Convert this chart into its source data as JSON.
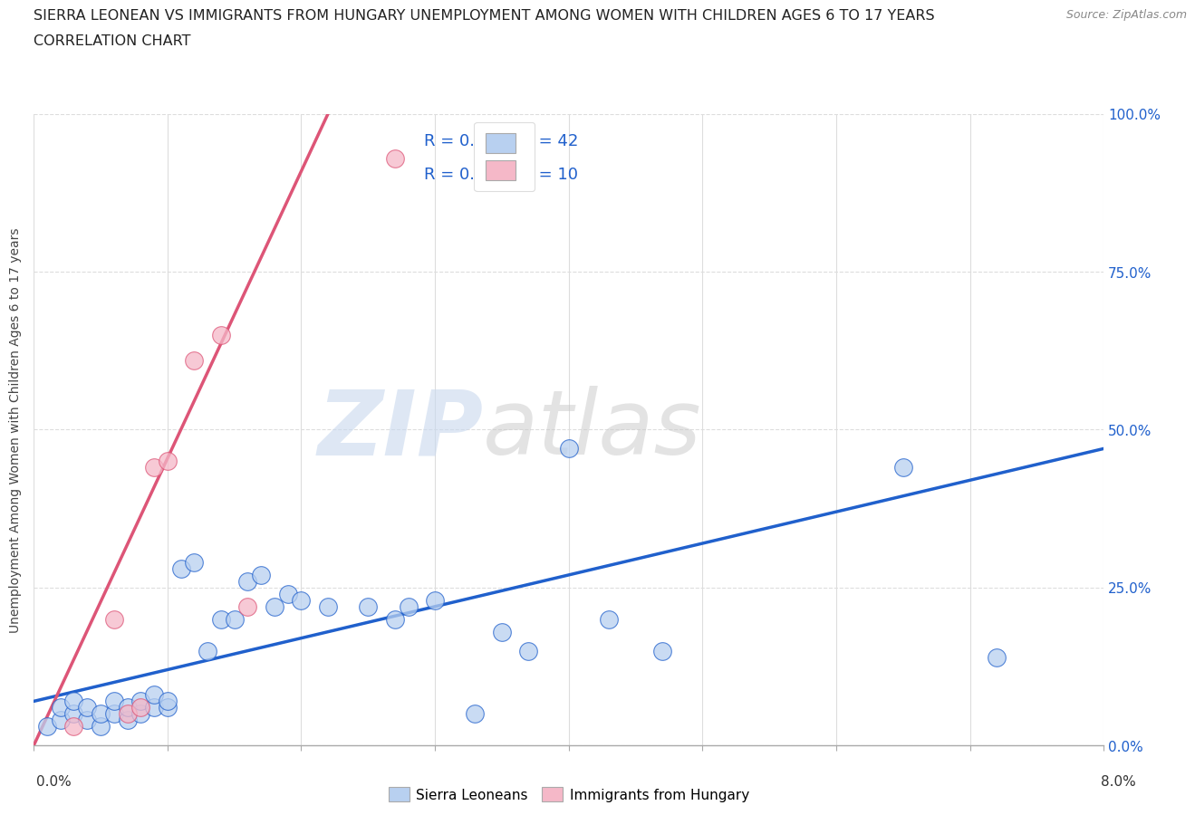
{
  "title_line1": "SIERRA LEONEAN VS IMMIGRANTS FROM HUNGARY UNEMPLOYMENT AMONG WOMEN WITH CHILDREN AGES 6 TO 17 YEARS",
  "title_line2": "CORRELATION CHART",
  "source": "Source: ZipAtlas.com",
  "ylabel": "Unemployment Among Women with Children Ages 6 to 17 years",
  "watermark_ZIP": "ZIP",
  "watermark_atlas": "atlas",
  "blue_R": 0.616,
  "blue_N": 42,
  "pink_R": 0.816,
  "pink_N": 10,
  "blue_color": "#b8d0f0",
  "pink_color": "#f5b8c8",
  "blue_line_color": "#2060cc",
  "pink_line_color": "#dd5577",
  "text_color_R": "#333333",
  "text_color_blue": "#2060cc",
  "text_color_orange": "#dd7700",
  "xlim": [
    0.0,
    0.08
  ],
  "ylim": [
    0.0,
    1.0
  ],
  "yticks": [
    0.0,
    0.25,
    0.5,
    0.75,
    1.0
  ],
  "ytick_labels": [
    "0.0%",
    "25.0%",
    "50.0%",
    "75.0%",
    "100.0%"
  ],
  "blue_x": [
    0.001,
    0.002,
    0.002,
    0.003,
    0.003,
    0.004,
    0.004,
    0.005,
    0.005,
    0.006,
    0.006,
    0.007,
    0.007,
    0.008,
    0.008,
    0.009,
    0.009,
    0.01,
    0.01,
    0.011,
    0.012,
    0.013,
    0.014,
    0.015,
    0.016,
    0.017,
    0.018,
    0.019,
    0.02,
    0.022,
    0.025,
    0.027,
    0.028,
    0.03,
    0.033,
    0.035,
    0.037,
    0.04,
    0.043,
    0.047,
    0.065,
    0.072
  ],
  "blue_y": [
    0.03,
    0.04,
    0.06,
    0.05,
    0.07,
    0.04,
    0.06,
    0.03,
    0.05,
    0.05,
    0.07,
    0.04,
    0.06,
    0.05,
    0.07,
    0.06,
    0.08,
    0.06,
    0.07,
    0.28,
    0.29,
    0.15,
    0.2,
    0.2,
    0.26,
    0.27,
    0.22,
    0.24,
    0.23,
    0.22,
    0.22,
    0.2,
    0.22,
    0.23,
    0.05,
    0.18,
    0.15,
    0.47,
    0.2,
    0.15,
    0.44,
    0.14
  ],
  "pink_x": [
    0.003,
    0.006,
    0.007,
    0.008,
    0.009,
    0.01,
    0.012,
    0.014,
    0.016,
    0.027
  ],
  "pink_y": [
    0.03,
    0.2,
    0.05,
    0.06,
    0.44,
    0.45,
    0.61,
    0.65,
    0.22,
    0.93
  ],
  "blue_trend_x": [
    0.0,
    0.08
  ],
  "blue_trend_y": [
    0.07,
    0.47
  ],
  "pink_trend_x": [
    0.0,
    0.022
  ],
  "pink_trend_y": [
    0.0,
    1.0
  ],
  "background_color": "#ffffff",
  "grid_color": "#dddddd",
  "title_fontsize": 11.5,
  "axis_label_fontsize": 10,
  "tick_fontsize": 11,
  "legend_fontsize": 13
}
